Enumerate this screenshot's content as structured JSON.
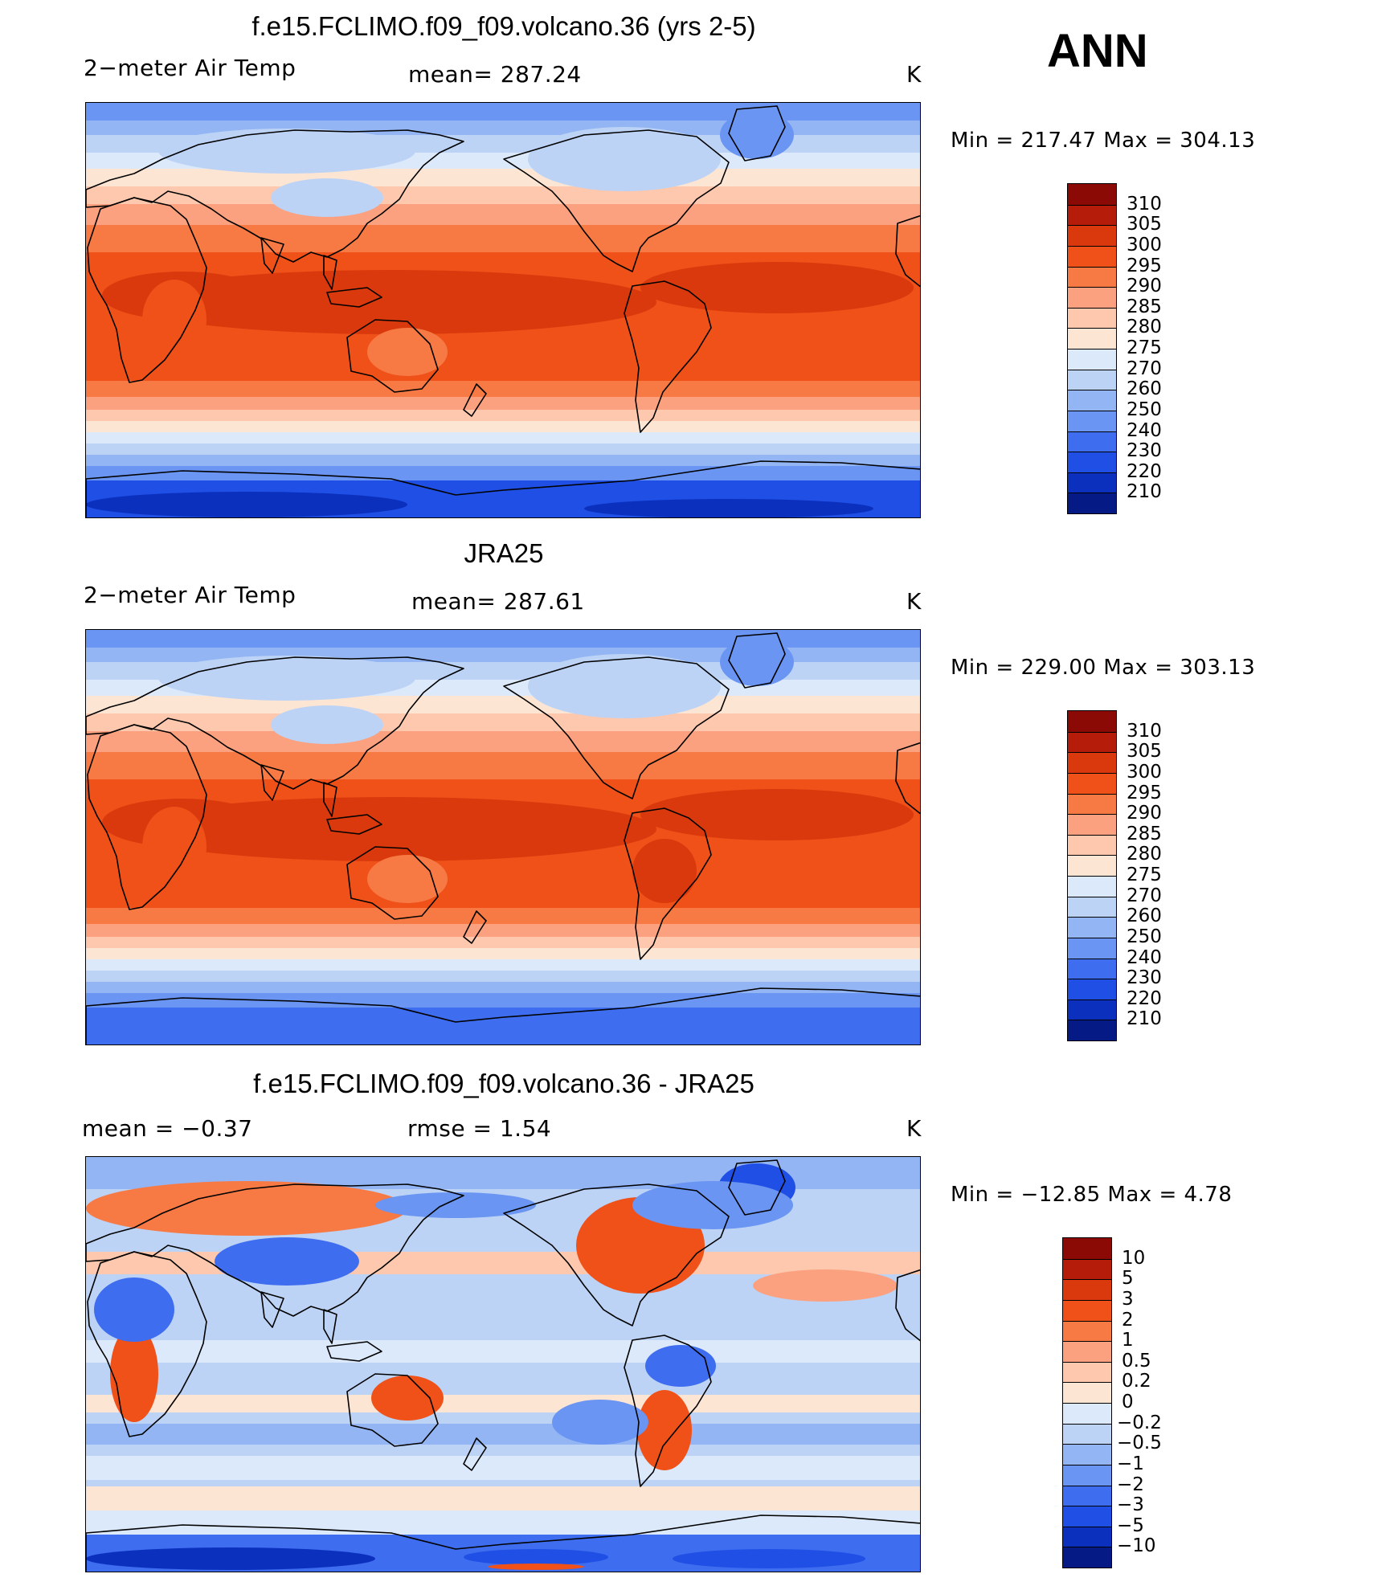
{
  "season": "ANN",
  "units": "K",
  "panels": [
    {
      "id": "model",
      "title": "f.e15.FCLIMO.f09_f09.volcano.36 (yrs 2-5)",
      "left_label": "2−meter Air Temp",
      "center_label": "mean=  287.24",
      "right_label": "K",
      "minmax": "Min  =  217.47  Max  =  304.13",
      "kind": "abs",
      "colorbar_labels": [
        "310",
        "305",
        "300",
        "295",
        "290",
        "285",
        "280",
        "275",
        "270",
        "260",
        "250",
        "240",
        "230",
        "220",
        "210"
      ]
    },
    {
      "id": "obs",
      "title": "JRA25",
      "left_label": "2−meter Air Temp",
      "center_label": "mean=  287.61",
      "right_label": "K",
      "minmax": "Min  =  229.00  Max  =  303.13",
      "kind": "abs",
      "colorbar_labels": [
        "310",
        "305",
        "300",
        "295",
        "290",
        "285",
        "280",
        "275",
        "270",
        "260",
        "250",
        "240",
        "230",
        "220",
        "210"
      ]
    },
    {
      "id": "diff",
      "title": "f.e15.FCLIMO.f09_f09.volcano.36 - JRA25",
      "left_label": "mean  =     −0.37",
      "center_label": "rmse  =      1.54",
      "right_label": "K",
      "minmax": "Min  =  −12.85  Max  =      4.78",
      "kind": "diff",
      "colorbar_labels": [
        "10",
        "5",
        "3",
        "2",
        "1",
        "0.5",
        "0.2",
        "0",
        "−0.2",
        "−0.5",
        "−1",
        "−2",
        "−3",
        "−5",
        "−10"
      ]
    }
  ],
  "colors": {
    "abs_palette": [
      "#8b0a05",
      "#b51d0a",
      "#d9390c",
      "#ef5119",
      "#f77a45",
      "#fca17f",
      "#fdc8ae",
      "#fde5d4",
      "#dbe9fa",
      "#bcd3f5",
      "#93b5f4",
      "#6a95f2",
      "#3e6def",
      "#1f4fe4",
      "#0b30bd",
      "#061a85"
    ],
    "diff_palette": [
      "#8b0a05",
      "#b51d0a",
      "#d9390c",
      "#ef5119",
      "#f77a45",
      "#fca17f",
      "#fdc8ae",
      "#fde5d4",
      "#dbe9fa",
      "#bcd3f5",
      "#93b5f4",
      "#6a95f2",
      "#3e6def",
      "#1f4fe4",
      "#0b30bd",
      "#061a85"
    ]
  }
}
